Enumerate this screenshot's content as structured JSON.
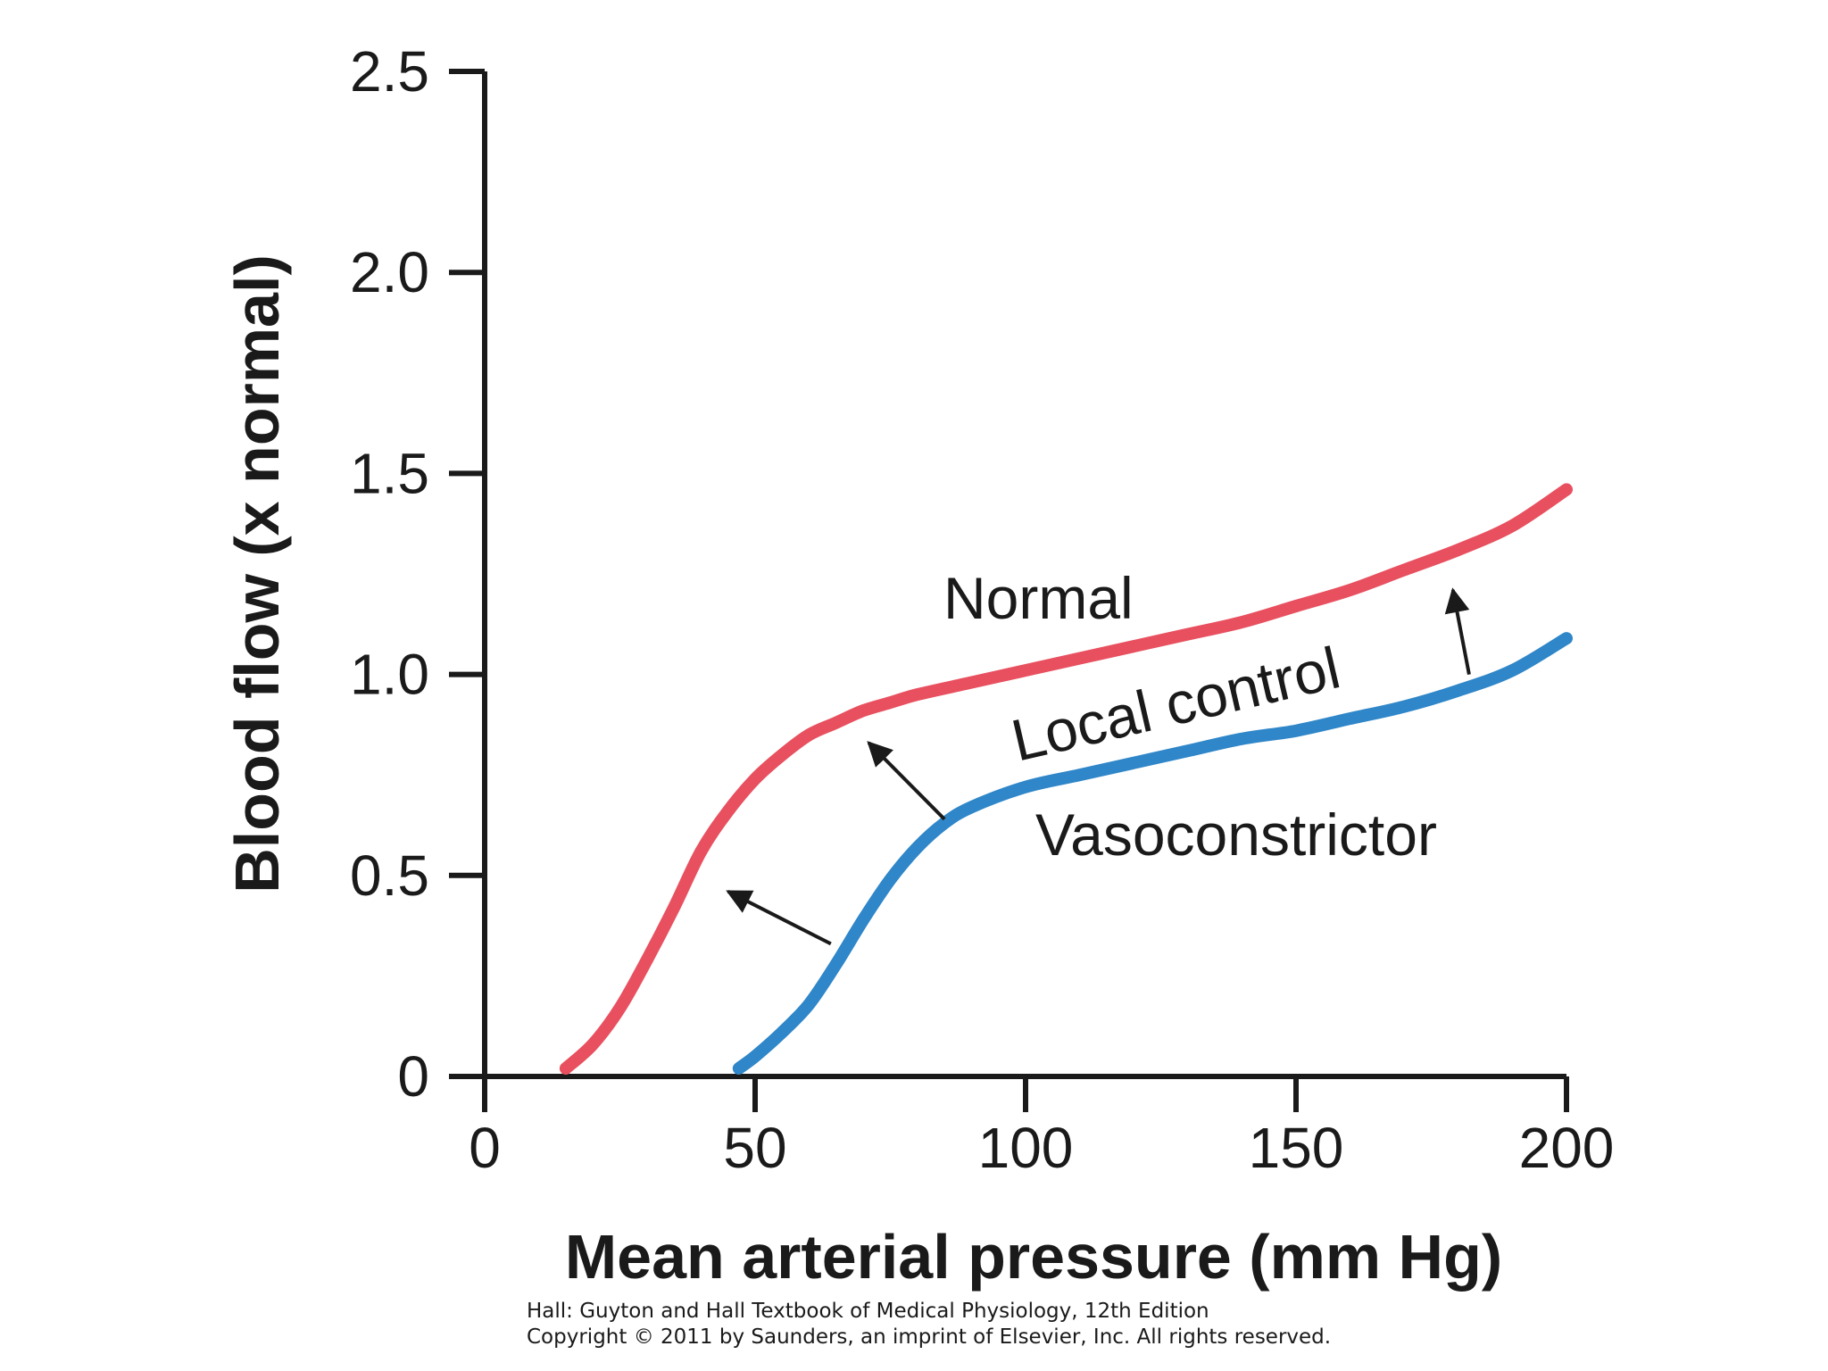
{
  "chart_data": {
    "type": "line",
    "xlabel": "Mean arterial pressure (mm Hg)",
    "ylabel": "Blood flow (x normal)",
    "xlim": [
      0,
      200
    ],
    "ylim": [
      0,
      2.5
    ],
    "x_ticks": [
      "0",
      "50",
      "100",
      "150",
      "200"
    ],
    "y_ticks": [
      "0",
      "0.5",
      "1.0",
      "1.5",
      "2.0",
      "2.5"
    ],
    "grid": false,
    "series": [
      {
        "name": "Normal",
        "color": "#e8505f",
        "x": [
          15,
          20,
          25,
          30,
          35,
          40,
          45,
          50,
          55,
          60,
          65,
          70,
          75,
          80,
          90,
          100,
          110,
          120,
          130,
          140,
          150,
          160,
          170,
          180,
          190,
          200
        ],
        "y": [
          0.02,
          0.08,
          0.17,
          0.29,
          0.42,
          0.56,
          0.66,
          0.74,
          0.8,
          0.85,
          0.88,
          0.91,
          0.93,
          0.95,
          0.98,
          1.01,
          1.04,
          1.07,
          1.1,
          1.13,
          1.17,
          1.21,
          1.26,
          1.31,
          1.37,
          1.46
        ]
      },
      {
        "name": "Vasoconstrictor",
        "color": "#2f86c8",
        "x": [
          47,
          50,
          55,
          60,
          65,
          70,
          75,
          80,
          85,
          90,
          100,
          110,
          120,
          130,
          140,
          150,
          160,
          170,
          180,
          190,
          200
        ],
        "y": [
          0.02,
          0.05,
          0.11,
          0.18,
          0.28,
          0.39,
          0.49,
          0.57,
          0.63,
          0.67,
          0.72,
          0.75,
          0.78,
          0.81,
          0.84,
          0.86,
          0.89,
          0.92,
          0.96,
          1.01,
          1.09
        ]
      }
    ],
    "annotations": {
      "normal_label": "Normal",
      "local_control_label": "Local control",
      "vasoconstrictor_label": "Vasoconstrictor",
      "arrows": [
        {
          "from": [
            64,
            0.33
          ],
          "to": [
            45,
            0.46
          ]
        },
        {
          "from": [
            85,
            0.64
          ],
          "to": [
            71,
            0.83
          ]
        },
        {
          "from": [
            182,
            1.0
          ],
          "to": [
            179,
            1.21
          ]
        }
      ]
    }
  },
  "caption": {
    "line1": "Hall: Guyton and Hall Textbook of Medical Physiology, 12th Edition",
    "line2": "Copyright © 2011 by Saunders, an imprint of Elsevier, Inc. All rights reserved."
  }
}
